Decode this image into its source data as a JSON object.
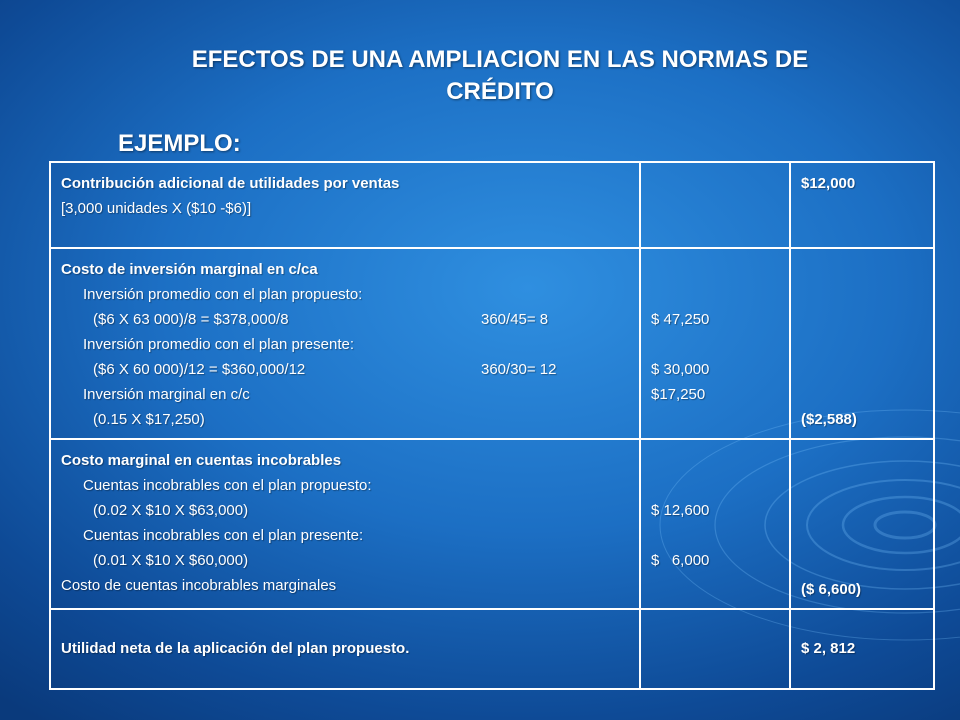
{
  "title": "EFECTOS DE UNA AMPLIACION EN LAS NORMAS DE CRÉDITO",
  "subtitle": "EJEMPLO:",
  "rows": [
    {
      "header": "Contribución adicional de utilidades por ventas",
      "line": "[3,000 unidades X ($10 -$6)]",
      "total": "$12,000"
    },
    {
      "header": "Costo de inversión marginal en c/ca",
      "proposed_label": "Inversión promedio con el plan propuesto:",
      "proposed_calc": "($6 X 63 000)/8 = $378,000/8",
      "proposed_turnover": "360/45= 8",
      "proposed_value": "$ 47,250",
      "present_label": "Inversión promedio con el plan presente:",
      "present_calc": "($6 X 60 000)/12 = $360,000/12",
      "present_turnover": "360/30= 12",
      "present_value": "$ 30,000",
      "marginal_label": "Inversión marginal en c/c",
      "marginal_value": "$17,250",
      "cost_calc": "(0.15 X $17,250)",
      "total": "($2,588)"
    },
    {
      "header": "Costo marginal en cuentas incobrables",
      "proposed_label": "Cuentas incobrables con el plan propuesto:",
      "proposed_calc": "(0.02 X $10 X $63,000)",
      "proposed_value": "$ 12,600",
      "present_label": "Cuentas incobrables con el plan presente:",
      "present_calc": "(0.01 X $10 X $60,000)",
      "present_value": "$   6,000",
      "marginal_label": "Costo de cuentas incobrables marginales",
      "total": "($ 6,600)"
    },
    {
      "header": "Utilidad neta de la aplicación del plan propuesto.",
      "total": "$ 2, 812"
    }
  ]
}
